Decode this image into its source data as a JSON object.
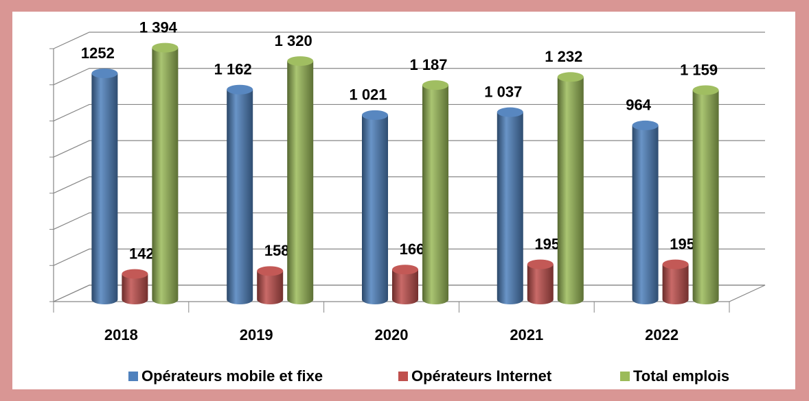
{
  "chart_data": {
    "type": "bar3d",
    "categories": [
      "2018",
      "2019",
      "2020",
      "2021",
      "2022"
    ],
    "series": [
      {
        "name": "Opérateurs mobile et fixe",
        "color": "#4f81bd",
        "values": [
          1252,
          1162,
          1021,
          1037,
          964
        ],
        "value_labels": [
          "1252",
          "1 162",
          "1 021",
          "1 037",
          "964"
        ]
      },
      {
        "name": "Opérateurs Internet",
        "color": "#c0504d",
        "values": [
          142,
          158,
          166,
          195,
          195
        ],
        "value_labels": [
          "142",
          "158",
          "166",
          "195",
          "195"
        ]
      },
      {
        "name": "Total emplois",
        "color": "#9bbb59",
        "values": [
          1394,
          1320,
          1187,
          1232,
          1159
        ],
        "value_labels": [
          "1 394",
          "1 320",
          "1 187",
          "1 232",
          "1 159"
        ]
      }
    ],
    "ylim": [
      0,
      1400
    ],
    "yticks": [
      0,
      200,
      400,
      600,
      800,
      1000,
      1200,
      1400
    ],
    "grid": true
  }
}
